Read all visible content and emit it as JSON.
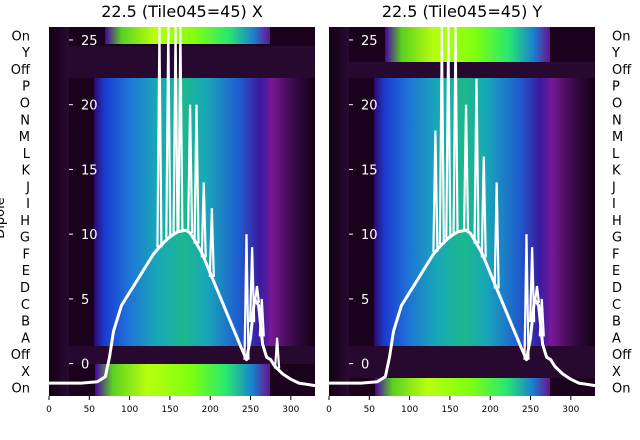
{
  "figure": {
    "ylabel": "Dipole",
    "categories_left": [
      "On",
      "Y",
      "Off",
      "P",
      "O",
      "N",
      "M",
      "L",
      "K",
      "J",
      "I",
      "H",
      "G",
      "F",
      "E",
      "D",
      "C",
      "B",
      "A",
      "Off",
      "X",
      "On"
    ],
    "categories_right": [
      "On",
      "Y",
      "Off",
      "P",
      "O",
      "N",
      "M",
      "L",
      "K",
      "J",
      "I",
      "H",
      "G",
      "F",
      "E",
      "D",
      "C",
      "B",
      "A",
      "Off",
      "X",
      "On"
    ]
  },
  "colors": {
    "dark": "#120012",
    "green_band": "#7dff10",
    "blue": "#1f6fd8",
    "teal": "#18b89c",
    "curve": "#ffffff",
    "purple": "#7a1a9a"
  },
  "chart_data": [
    {
      "type": "line",
      "title": "22.5 (Tile045=45) X",
      "xlabel": "",
      "ylabel": "Dipole",
      "xlim": [
        0,
        330
      ],
      "ylim": [
        -2.5,
        26
      ],
      "xticks": [
        0,
        50,
        100,
        150,
        200,
        250,
        300
      ],
      "yticks": [
        0,
        5,
        10,
        15,
        20,
        25
      ],
      "series": [
        {
          "x": [
            0,
            20,
            40,
            60,
            70,
            75,
            80,
            90,
            100,
            110,
            120,
            130,
            140,
            150,
            160,
            170,
            175,
            180,
            190,
            200,
            210,
            220,
            230,
            240,
            245,
            250,
            255,
            260,
            265,
            270,
            275,
            280,
            285,
            290,
            300,
            310,
            320,
            330
          ],
          "y": [
            -1.5,
            -1.5,
            -1.5,
            -1.4,
            -1.0,
            0.5,
            2.5,
            4.5,
            5.5,
            6.5,
            7.5,
            8.5,
            9.2,
            9.8,
            10.2,
            10.3,
            10.1,
            9.6,
            8.5,
            7.0,
            5.5,
            4.0,
            2.5,
            1.0,
            0.3,
            2.0,
            5.0,
            4.5,
            1.5,
            0.5,
            0.3,
            -0.2,
            -0.5,
            -0.8,
            -1.2,
            -1.5,
            -1.6,
            -1.7
          ]
        }
      ],
      "spikes": [
        {
          "x": 137,
          "y": 26
        },
        {
          "x": 148,
          "y": 26
        },
        {
          "x": 157,
          "y": 26
        },
        {
          "x": 163,
          "y": 26
        },
        {
          "x": 175,
          "y": 20
        },
        {
          "x": 183,
          "y": 20
        },
        {
          "x": 192,
          "y": 14
        },
        {
          "x": 202,
          "y": 12
        },
        {
          "x": 245,
          "y": 10
        },
        {
          "x": 252,
          "y": 9
        },
        {
          "x": 258,
          "y": 6
        },
        {
          "x": 264,
          "y": 5
        },
        {
          "x": 283,
          "y": 2
        }
      ]
    },
    {
      "type": "line",
      "title": "22.5 (Tile045=45) Y",
      "xlabel": "",
      "ylabel": "",
      "xlim": [
        0,
        330
      ],
      "ylim": [
        -2.5,
        26
      ],
      "xticks": [
        0,
        50,
        100,
        150,
        200,
        250,
        300
      ],
      "yticks": [
        0,
        5,
        10,
        15,
        20,
        25
      ],
      "series": [
        {
          "x": [
            0,
            20,
            40,
            60,
            70,
            75,
            80,
            90,
            100,
            110,
            120,
            130,
            140,
            150,
            160,
            170,
            175,
            180,
            190,
            200,
            210,
            220,
            230,
            240,
            245,
            250,
            255,
            260,
            265,
            270,
            275,
            280,
            285,
            290,
            300,
            310,
            320,
            330
          ],
          "y": [
            -1.5,
            -1.5,
            -1.5,
            -1.4,
            -1.0,
            0.5,
            2.5,
            4.5,
            5.5,
            6.5,
            7.5,
            8.5,
            9.2,
            9.8,
            10.2,
            10.3,
            10.1,
            9.6,
            8.5,
            7.0,
            5.5,
            4.0,
            2.5,
            1.0,
            0.3,
            2.0,
            5.0,
            4.5,
            1.5,
            0.5,
            0.3,
            -0.2,
            -0.5,
            -0.8,
            -1.2,
            -1.5,
            -1.6,
            -1.7
          ]
        }
      ],
      "spikes": [
        {
          "x": 132,
          "y": 18
        },
        {
          "x": 140,
          "y": 26
        },
        {
          "x": 148,
          "y": 26
        },
        {
          "x": 157,
          "y": 26
        },
        {
          "x": 170,
          "y": 20
        },
        {
          "x": 183,
          "y": 22
        },
        {
          "x": 192,
          "y": 16
        },
        {
          "x": 208,
          "y": 14
        },
        {
          "x": 245,
          "y": 10
        },
        {
          "x": 252,
          "y": 9
        },
        {
          "x": 258,
          "y": 6
        },
        {
          "x": 264,
          "y": 5
        }
      ]
    }
  ]
}
